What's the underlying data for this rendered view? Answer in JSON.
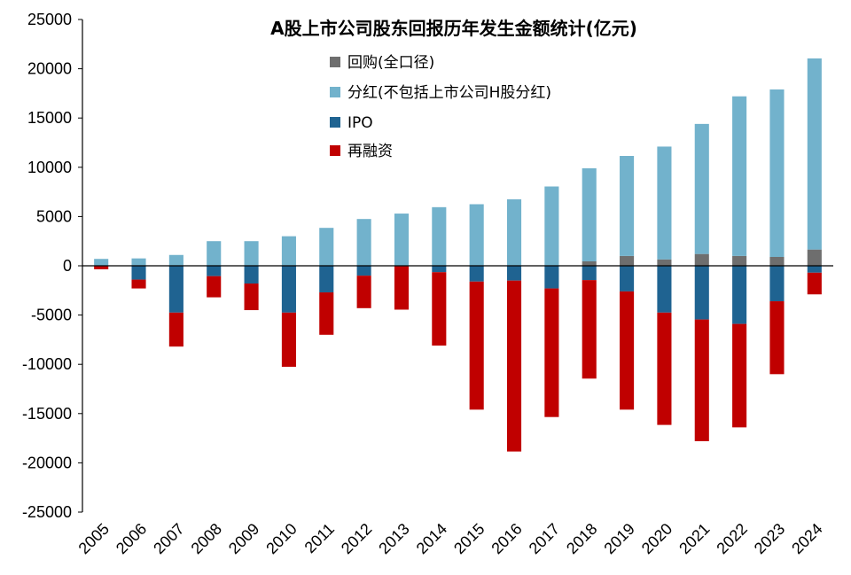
{
  "chart_data": {
    "type": "bar",
    "stacked": true,
    "title": "A股上市公司股东回报历年发生金额统计(亿元)",
    "xlabel": "",
    "ylabel": "",
    "ylim": [
      -25000,
      25000
    ],
    "yticks": [
      25000,
      20000,
      15000,
      10000,
      5000,
      0,
      -5000,
      -10000,
      -15000,
      -20000,
      -25000
    ],
    "categories": [
      "2005",
      "2006",
      "2007",
      "2008",
      "2009",
      "2010",
      "2011",
      "2012",
      "2013",
      "2014",
      "2015",
      "2016",
      "2017",
      "2018",
      "2019",
      "2020",
      "2021",
      "2022",
      "2023",
      "2024"
    ],
    "legend_position": "top-left",
    "series": [
      {
        "name": "回购(全口径)",
        "color": "#6e6e6e",
        "values": [
          0,
          0,
          0,
          0,
          0,
          0,
          0,
          0,
          0,
          0,
          0,
          0,
          0,
          450,
          1000,
          650,
          1200,
          1000,
          900,
          1650
        ]
      },
      {
        "name": "分红(不包括上市公司H股分红)",
        "color": "#72b2cc",
        "values": [
          700,
          750,
          1100,
          2500,
          2500,
          3000,
          3850,
          4750,
          5300,
          5950,
          6250,
          6750,
          8050,
          9450,
          10150,
          11450,
          13200,
          16200,
          17000,
          19400
        ]
      },
      {
        "name": "IPO",
        "color": "#1f6391",
        "values": [
          -50,
          -1400,
          -4750,
          -1050,
          -1800,
          -4750,
          -2700,
          -1000,
          -50,
          -650,
          -1600,
          -1500,
          -2300,
          -1450,
          -2600,
          -4750,
          -5450,
          -5900,
          -3600,
          -700
        ]
      },
      {
        "name": "再融资",
        "color": "#c00000",
        "values": [
          -300,
          -900,
          -3450,
          -2150,
          -2700,
          -5500,
          -4300,
          -3300,
          -4400,
          -7450,
          -13000,
          -17350,
          -13050,
          -10000,
          -12000,
          -11400,
          -12350,
          -10500,
          -7400,
          -2200
        ]
      }
    ]
  }
}
